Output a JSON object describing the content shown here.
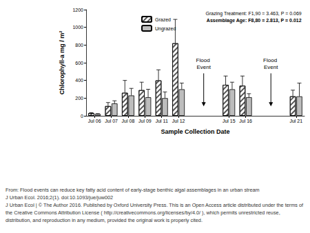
{
  "chart_data": {
    "type": "bar",
    "x_label": "Sample Collection Date",
    "y_label": "Chlorophyll-a mg / m²",
    "categories": [
      "Jul 06",
      "Jul 07",
      "Jul 08",
      "Jul 09",
      "Jul 11",
      "Jul 12",
      null,
      null,
      "Jul 15",
      "Jul 16",
      null,
      null,
      "Jul 21"
    ],
    "series": [
      {
        "name": "Grazed",
        "color": "#ffffff",
        "values": [
          30,
          110,
          260,
          290,
          400,
          820,
          null,
          null,
          350,
          340,
          null,
          null,
          220
        ],
        "errors": [
          5,
          40,
          140,
          90,
          120,
          270,
          null,
          null,
          100,
          110,
          null,
          null,
          70
        ]
      },
      {
        "name": "Ungrazed",
        "color": "#bdbdbd",
        "values": [
          20,
          140,
          230,
          210,
          200,
          300,
          null,
          null,
          300,
          210,
          null,
          null,
          220
        ],
        "errors": [
          5,
          30,
          80,
          90,
          70,
          70,
          null,
          null,
          80,
          40,
          null,
          null,
          150
        ]
      }
    ],
    "ylim": [
      0,
      1200
    ],
    "yticks": [
      0,
      200,
      400,
      600,
      800,
      1000,
      1200
    ],
    "grid": false,
    "legend": "top",
    "stats": [
      "Grazing Treatment: F1,90 = 3.463, P = 0.069",
      "Assemblage Age: F8,80 = 2.813, P = 0.012"
    ],
    "annotations": [
      "Flood Event",
      "Flood Event"
    ],
    "caption": [
      "From: Flood events can reduce key fatty acid content of early-stage benthic algal assemblages in an urban stream",
      "J Urban Ecol. 2016;2(1). doi:10.1093/jue/juw002",
      "J Urban Ecol | © The Author 2016. Published by Oxford University Press. This is an Open Access article distributed under the terms of the Creative Commons Attribution License ( http://creativecommons.org/licenses/by/4.0/ ), which permits unrestricted reuse, distribution, and reproduction in any medium, provided the original work is properly cited."
    ]
  }
}
